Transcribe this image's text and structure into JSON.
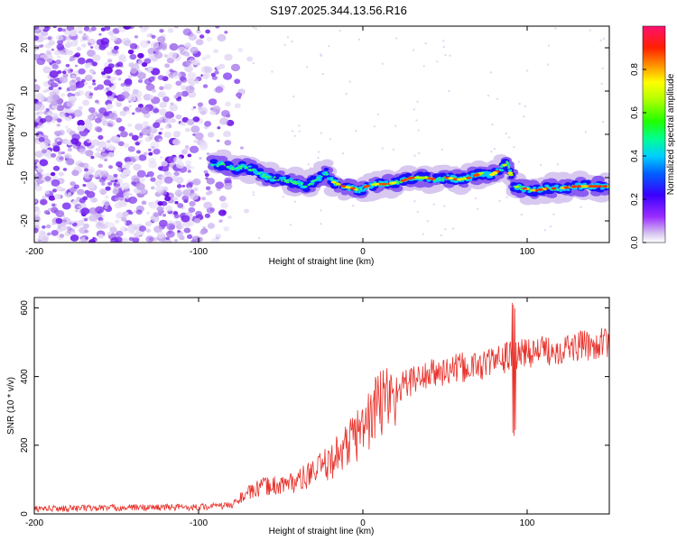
{
  "title": "S197.2025.344.13.56.R16",
  "chart_data": [
    {
      "type": "heatmap",
      "xlabel": "Height of straight line (km)",
      "ylabel": "Frequency (Hz)",
      "xlim": [
        -200,
        150
      ],
      "ylim": [
        -25,
        25
      ],
      "xticks": [
        -200,
        -100,
        0,
        100
      ],
      "yticks": [
        -20,
        -10,
        0,
        10,
        20
      ],
      "colorbar": {
        "label": "Normalized spectral amplitude",
        "range": [
          0,
          1
        ],
        "ticks": [
          0.0,
          0.2,
          0.4,
          0.6,
          0.8
        ],
        "tick_labels": [
          "0.0",
          "0.2",
          "0.4",
          "0.6",
          "0.8"
        ]
      },
      "ridge": {
        "x": [
          -92,
          -85,
          -78,
          -72,
          -65,
          -58,
          -50,
          -42,
          -35,
          -28,
          -22,
          -18,
          -12,
          -6,
          -2,
          2,
          8,
          15,
          22,
          30,
          38,
          45,
          52,
          58,
          65,
          72,
          78,
          84,
          88,
          92,
          98,
          105,
          112,
          120,
          130,
          140,
          150
        ],
        "freq": [
          -7,
          -7,
          -8,
          -7.5,
          -8.5,
          -10,
          -10.5,
          -11,
          -12,
          -10.5,
          -9,
          -11,
          -12,
          -12.5,
          -13,
          -12,
          -11.5,
          -11.5,
          -11,
          -10,
          -10,
          -10.5,
          -10,
          -10.5,
          -10,
          -9,
          -9.5,
          -8,
          -6.5,
          -12,
          -12.5,
          -13,
          -12.5,
          -12.5,
          -12,
          -12,
          -12
        ]
      }
    },
    {
      "type": "line",
      "xlabel": "Height of straight line (km)",
      "ylabel": "SNR (10 * v/v)",
      "xlim": [
        -200,
        150
      ],
      "ylim": [
        0,
        630
      ],
      "xticks": [
        -200,
        -100,
        0,
        100
      ],
      "yticks": [
        0,
        200,
        400,
        600
      ],
      "series_color": "#e8312a",
      "trend": {
        "x": [
          -200,
          -150,
          -100,
          -80,
          -75,
          -70,
          -65,
          -60,
          -50,
          -40,
          -30,
          -20,
          -10,
          0,
          10,
          20,
          30,
          40,
          50,
          60,
          70,
          80,
          90,
          100,
          110,
          120,
          130,
          140,
          150
        ],
        "y": [
          15,
          18,
          20,
          25,
          45,
          60,
          70,
          80,
          85,
          95,
          120,
          150,
          200,
          250,
          320,
          360,
          390,
          405,
          415,
          425,
          430,
          445,
          460,
          470,
          475,
          480,
          488,
          492,
          500
        ]
      },
      "spike": {
        "x": 92,
        "min": 215,
        "max": 625
      }
    }
  ]
}
